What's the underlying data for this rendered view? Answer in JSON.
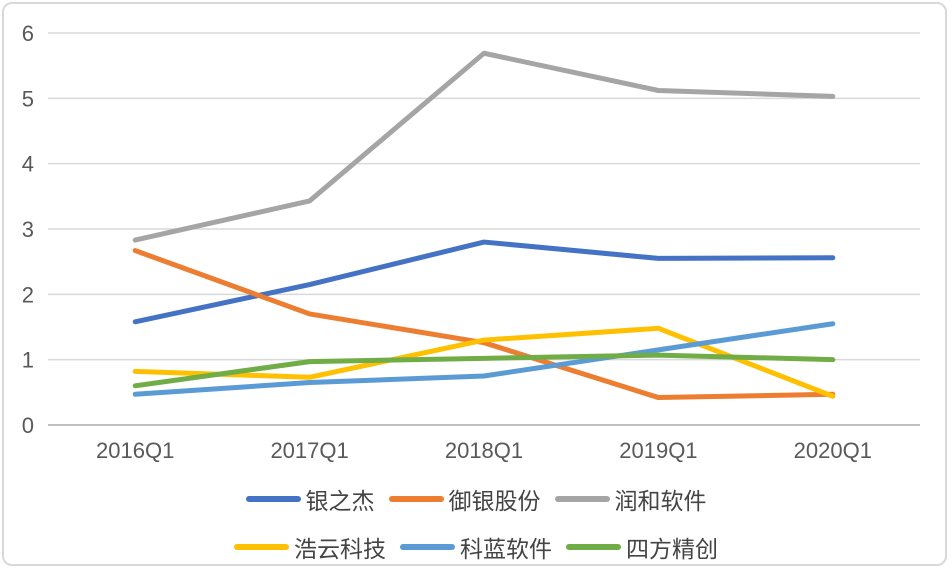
{
  "chart_data": {
    "type": "line",
    "title": "",
    "xlabel": "",
    "ylabel": "",
    "categories": [
      "2016Q1",
      "2017Q1",
      "2018Q1",
      "2019Q1",
      "2020Q1"
    ],
    "series": [
      {
        "name": "银之杰",
        "color": "#4472C4",
        "values": [
          1.58,
          2.15,
          2.8,
          2.55,
          2.56
        ]
      },
      {
        "name": "御银股份",
        "color": "#ED7D31",
        "values": [
          2.67,
          1.7,
          1.26,
          0.42,
          0.47
        ]
      },
      {
        "name": "润和软件",
        "color": "#A5A5A5",
        "values": [
          2.83,
          3.43,
          5.69,
          5.12,
          5.03
        ]
      },
      {
        "name": "浩云科技",
        "color": "#FFC000",
        "values": [
          0.82,
          0.73,
          1.3,
          1.48,
          0.44
        ]
      },
      {
        "name": "科蓝软件",
        "color": "#5B9BD5",
        "values": [
          0.47,
          0.65,
          0.75,
          1.15,
          1.55
        ]
      },
      {
        "name": "四方精创",
        "color": "#70AD47",
        "values": [
          0.6,
          0.97,
          1.02,
          1.07,
          1.0
        ]
      }
    ],
    "ylim": [
      0,
      6
    ],
    "yticks": [
      0,
      1,
      2,
      3,
      4,
      5,
      6
    ],
    "grid": true,
    "legend_position": "bottom",
    "legend_items_per_row": 3
  },
  "colors": {
    "gridline": "#D9D9D9",
    "axis_line": "#BFBFBF",
    "tick_label": "#595959",
    "legend_text": "#444444",
    "frame_border": "#D9D9D9",
    "background": "#FFFFFF"
  }
}
